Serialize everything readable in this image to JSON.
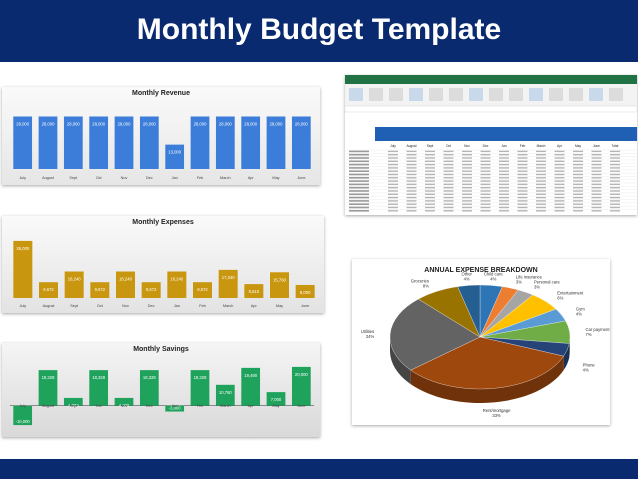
{
  "page": {
    "title": "Monthly Budget Template"
  },
  "chart_data": [
    {
      "type": "bar",
      "title": "Monthly Revenue",
      "categories": [
        "July",
        "August",
        "Sept",
        "Oct",
        "Nov",
        "Dec",
        "Jan",
        "Feb",
        "March",
        "Apr",
        "May",
        "June"
      ],
      "values": [
        28000,
        28000,
        28000,
        28000,
        28000,
        28000,
        13000,
        28000,
        28000,
        28000,
        28000,
        28000
      ],
      "labels": [
        "28,000",
        "28,000",
        "28,000",
        "28,000",
        "28,000",
        "28,000",
        "13,000",
        "28,000",
        "28,000",
        "28,000",
        "28,000",
        "28,000"
      ],
      "ylim": [
        0,
        32000
      ],
      "color": "#3b7dd8"
    },
    {
      "type": "bar",
      "title": "Monthly Expenses",
      "categories": [
        "July",
        "August",
        "Sept",
        "Oct",
        "Nov",
        "Dec",
        "Jan",
        "Feb",
        "March",
        "Apr",
        "May",
        "June"
      ],
      "values": [
        35000,
        9672,
        16240,
        9672,
        16240,
        9672,
        16240,
        9672,
        17240,
        8510,
        15760,
        8000
      ],
      "labels": [
        "35,000",
        "9,672",
        "16,240",
        "9,672",
        "16,240",
        "9,672",
        "16,240",
        "9,672",
        "17,240",
        "8,510",
        "15,760",
        "8,000"
      ],
      "ylim": [
        0,
        38000
      ],
      "color": "#c9960f"
    },
    {
      "type": "bar",
      "title": "Monthly Savings",
      "categories": [
        "July",
        "August",
        "Sept",
        "Oct",
        "Nov",
        "Dec",
        "Jan",
        "Feb",
        "March",
        "Apr",
        "May",
        "June"
      ],
      "values": [
        -10000,
        18328,
        4000,
        18328,
        4000,
        18328,
        -3000,
        18328,
        10760,
        19490,
        7000,
        20000
      ],
      "labels": [
        "-10,000",
        "18,328",
        "4,000",
        "18,328",
        "4,000",
        "18,328",
        "-3,000",
        "18,328",
        "10,760",
        "19,490",
        "7,000",
        "20,000"
      ],
      "ylim": [
        -12000,
        22000
      ],
      "color": "#1fa35c"
    },
    {
      "type": "pie",
      "title": "ANNUAL EXPENSE BREAKDOWN",
      "slices": [
        {
          "label": "Child care",
          "value": 4,
          "color": "#2e75b6"
        },
        {
          "label": "Life insurance",
          "value": 3,
          "color": "#ed7d31"
        },
        {
          "label": "Personal care",
          "value": 3,
          "color": "#a5a5a5"
        },
        {
          "label": "Entertainment",
          "value": 6,
          "color": "#ffc000"
        },
        {
          "label": "Gym",
          "value": 4,
          "color": "#5b9bd5"
        },
        {
          "label": "Car payment",
          "value": 7,
          "color": "#70ad47"
        },
        {
          "label": "Phone",
          "value": 4,
          "color": "#264478"
        },
        {
          "label": "Rent/mortgage",
          "value": 33,
          "color": "#9e480e"
        },
        {
          "label": "Utilities",
          "value": 24,
          "color": "#636363"
        },
        {
          "label": "Groceries",
          "value": 8,
          "color": "#997300"
        },
        {
          "label": "Other",
          "value": 4,
          "color": "#255e91"
        }
      ]
    }
  ],
  "spreadsheet": {
    "ribbon_color": "#217346",
    "header_band_color": "#1f5fb4",
    "columns": [
      "July",
      "August",
      "Sept",
      "Oct",
      "Nov",
      "Dec",
      "Jan",
      "Feb",
      "March",
      "Apr",
      "May",
      "June",
      "Total"
    ]
  }
}
